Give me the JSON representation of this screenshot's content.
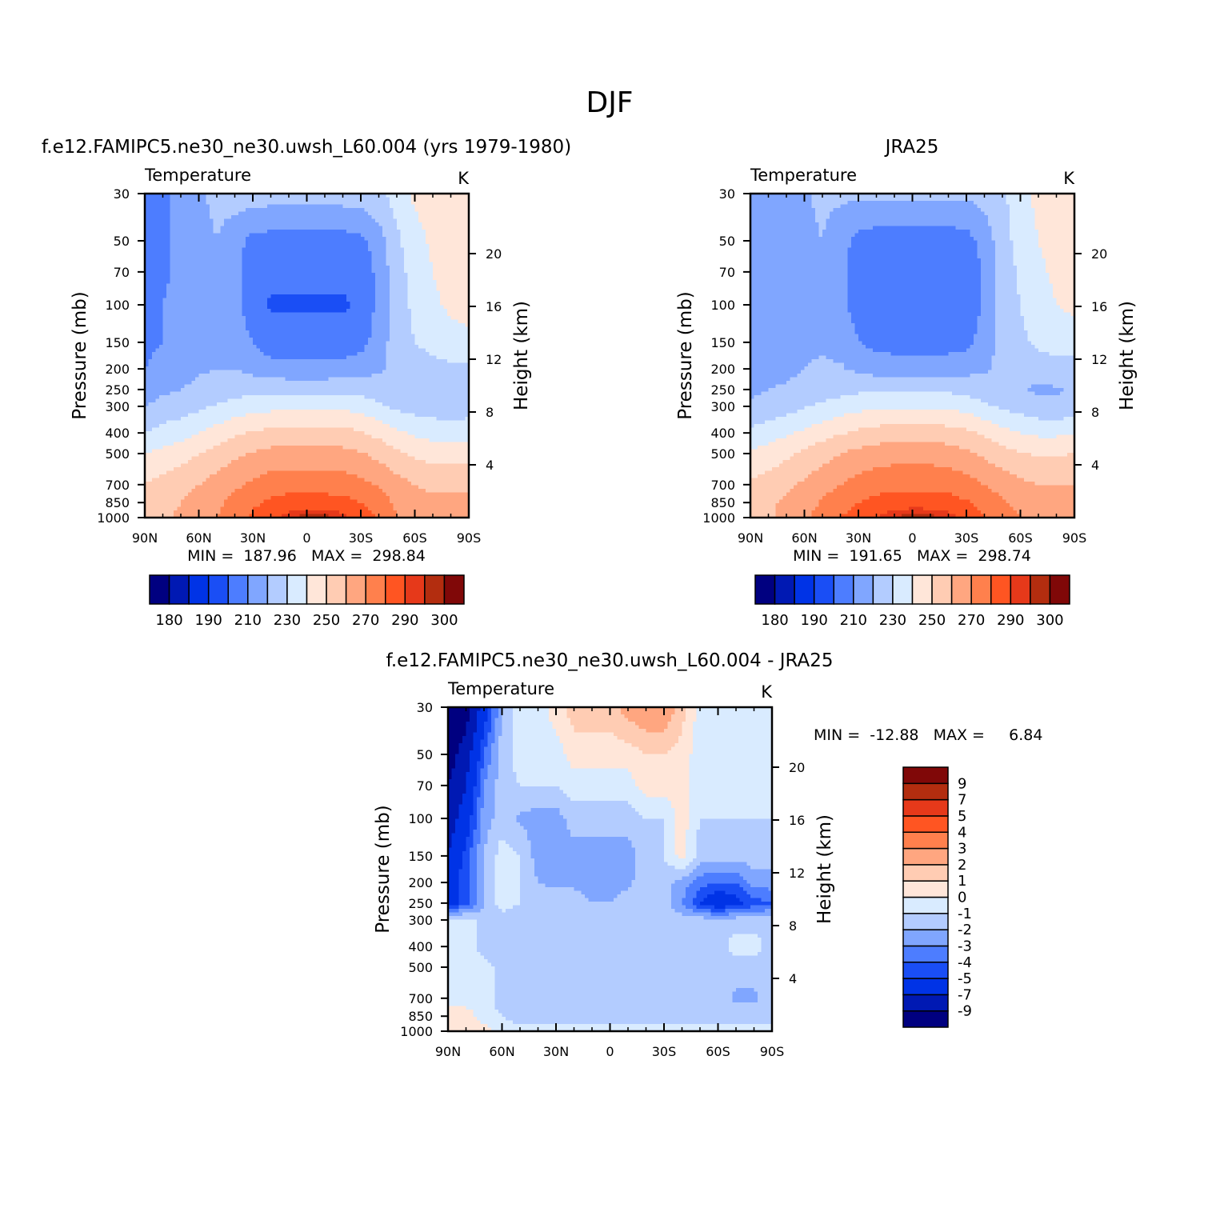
{
  "figure": {
    "title": "DJF"
  },
  "shared": {
    "pressure_ticks": [
      "30",
      "50",
      "70",
      "100",
      "150",
      "200",
      "250",
      "300",
      "400",
      "500",
      "700",
      "850",
      "1000"
    ],
    "pressure_values": [
      30,
      50,
      70,
      100,
      150,
      200,
      250,
      300,
      400,
      500,
      700,
      850,
      1000
    ],
    "height_ticks": [
      "4",
      "8",
      "12",
      "16",
      "20"
    ],
    "height_values": [
      4,
      8,
      12,
      16,
      20
    ],
    "lat_ticks": [
      "90N",
      "60N",
      "30N",
      "0",
      "30S",
      "60S",
      "90S"
    ],
    "lat_values": [
      90,
      60,
      30,
      0,
      -30,
      -60,
      -90
    ],
    "ylabel_left": "Pressure (mb)",
    "ylabel_right": "Height (km)",
    "field_label": "Temperature",
    "units_label": "K"
  },
  "colors": {
    "abs_fill": [
      "#000080",
      "#0019b3",
      "#0033e6",
      "#1a4ef5",
      "#4d7dff",
      "#80a6ff",
      "#b3ccff",
      "#d9ebff",
      "#ffe6d9",
      "#ffccb3",
      "#ffa680",
      "#ff804d",
      "#ff5522",
      "#e6391a",
      "#b32d0f",
      "#800808"
    ],
    "diff_fill": [
      "#000080",
      "#0019b3",
      "#0033e6",
      "#1a4ef5",
      "#4d7dff",
      "#80a6ff",
      "#b3ccff",
      "#d9ebff",
      "#ffe6d9",
      "#ffccb3",
      "#ffa680",
      "#ff804d",
      "#ff5522",
      "#e6391a",
      "#b32d0f",
      "#800808"
    ]
  },
  "chart_data": [
    {
      "type": "heatmap",
      "title": "f.e12.FAMIPC5.ne30_ne30.uwsh_L60.004 (yrs 1979-1980)",
      "subtitle_left": "Temperature",
      "subtitle_right": "K",
      "x_axis": "latitude",
      "xlim": [
        90,
        -90
      ],
      "ylabel": "Pressure (mb)",
      "ylim": [
        1000,
        30
      ],
      "y_scale": "log",
      "right_axis_label": "Height (km)",
      "stats_text": "MIN =  187.96   MAX =  298.84",
      "min": 187.96,
      "max": 298.84,
      "colorbar": {
        "orientation": "horizontal",
        "levels": [
          180,
          185,
          190,
          200,
          210,
          220,
          230,
          240,
          250,
          260,
          270,
          280,
          290,
          295,
          300
        ],
        "labels": [
          "180",
          "190",
          "210",
          "230",
          "250",
          "270",
          "290",
          "300"
        ]
      },
      "field": {
        "lat": [
          90,
          80,
          70,
          60,
          50,
          40,
          30,
          20,
          10,
          0,
          -10,
          -20,
          -30,
          -40,
          -50,
          -60,
          -70,
          -80,
          -90
        ],
        "p": [
          30,
          50,
          70,
          100,
          150,
          200,
          250,
          300,
          400,
          500,
          700,
          850,
          1000
        ],
        "T": [
          [
            203,
            208,
            214,
            218,
            223,
            225,
            225,
            225,
            225,
            225,
            225,
            225,
            226,
            228,
            234,
            242,
            246,
            248,
            248
          ],
          [
            206,
            208,
            212,
            216,
            220,
            214,
            207,
            206,
            206,
            206,
            206,
            206,
            207,
            215,
            228,
            236,
            242,
            246,
            246
          ],
          [
            206,
            208,
            212,
            216,
            218,
            213,
            204,
            202,
            202,
            202,
            202,
            202,
            203,
            213,
            226,
            234,
            240,
            244,
            245
          ],
          [
            206,
            210,
            214,
            218,
            218,
            214,
            203,
            199,
            199,
            199,
            199,
            199,
            201,
            213,
            226,
            232,
            238,
            242,
            244
          ],
          [
            207,
            210,
            214,
            218,
            219,
            217,
            210,
            204,
            204,
            204,
            204,
            204,
            206,
            215,
            225,
            230,
            234,
            236,
            237
          ],
          [
            210,
            215,
            216,
            219,
            220,
            220,
            217,
            214,
            213,
            213,
            213,
            214,
            216,
            219,
            222,
            224,
            226,
            228,
            228
          ],
          [
            212,
            218,
            220,
            222,
            223,
            225,
            227,
            227,
            227,
            227,
            227,
            227,
            226,
            224,
            222,
            222,
            222,
            223,
            224
          ],
          [
            220,
            224,
            225,
            228,
            231,
            234,
            236,
            237,
            238,
            238,
            238,
            238,
            236,
            232,
            228,
            226,
            225,
            225,
            225
          ],
          [
            230,
            233,
            236,
            240,
            244,
            248,
            251,
            253,
            254,
            254,
            254,
            253,
            251,
            247,
            242,
            238,
            236,
            235,
            236
          ],
          [
            240,
            243,
            246,
            250,
            254,
            258,
            261,
            263,
            264,
            264,
            264,
            263,
            261,
            257,
            252,
            248,
            246,
            246,
            247
          ],
          [
            251,
            253,
            256,
            260,
            264,
            268,
            272,
            275,
            276,
            276,
            276,
            275,
            273,
            269,
            264,
            260,
            258,
            258,
            258
          ],
          [
            256,
            258,
            260,
            264,
            268,
            273,
            278,
            282,
            284,
            284,
            284,
            283,
            280,
            275,
            268,
            264,
            262,
            262,
            262
          ],
          [
            258,
            259,
            261,
            266,
            270,
            276,
            282,
            288,
            293,
            298,
            297,
            293,
            286,
            280,
            270,
            266,
            264,
            264,
            263
          ]
        ]
      }
    },
    {
      "type": "heatmap",
      "title": "JRA25",
      "subtitle_left": "Temperature",
      "subtitle_right": "K",
      "x_axis": "latitude",
      "xlim": [
        90,
        -90
      ],
      "ylabel": "Pressure (mb)",
      "ylim": [
        1000,
        30
      ],
      "y_scale": "log",
      "right_axis_label": "Height (km)",
      "stats_text": "MIN =  191.65   MAX =  298.74",
      "min": 191.65,
      "max": 298.74,
      "colorbar": {
        "orientation": "horizontal",
        "levels": [
          180,
          185,
          190,
          200,
          210,
          220,
          230,
          240,
          250,
          260,
          270,
          280,
          290,
          295,
          300
        ],
        "labels": [
          "180",
          "190",
          "210",
          "230",
          "250",
          "270",
          "290",
          "300"
        ]
      },
      "field": {
        "lat": [
          90,
          80,
          70,
          60,
          50,
          40,
          30,
          20,
          10,
          0,
          -10,
          -20,
          -30,
          -40,
          -50,
          -60,
          -70,
          -80,
          -90
        ],
        "p": [
          30,
          50,
          70,
          100,
          150,
          200,
          250,
          300,
          400,
          500,
          700,
          850,
          1000
        ],
        "T": [
          [
            211,
            212,
            216,
            219,
            222,
            222,
            222,
            222,
            222,
            222,
            222,
            222,
            222,
            224,
            228,
            236,
            243,
            246,
            246
          ],
          [
            213,
            213,
            215,
            218,
            220,
            214,
            207,
            205,
            205,
            205,
            205,
            205,
            206,
            214,
            226,
            234,
            240,
            244,
            244
          ],
          [
            213,
            213,
            215,
            218,
            218,
            213,
            204,
            201,
            201,
            201,
            201,
            201,
            202,
            212,
            224,
            232,
            238,
            242,
            243
          ],
          [
            212,
            213,
            216,
            219,
            218,
            214,
            204,
            200,
            200,
            200,
            200,
            200,
            202,
            212,
            224,
            230,
            236,
            240,
            242
          ],
          [
            212,
            214,
            216,
            219,
            219,
            217,
            211,
            206,
            206,
            206,
            206,
            206,
            207,
            215,
            224,
            228,
            232,
            234,
            235
          ],
          [
            215,
            217,
            218,
            220,
            221,
            221,
            218,
            216,
            215,
            215,
            215,
            215,
            217,
            219,
            222,
            223,
            225,
            226,
            226
          ],
          [
            218,
            220,
            221,
            223,
            224,
            226,
            228,
            228,
            228,
            228,
            228,
            228,
            226,
            224,
            222,
            221,
            218,
            219,
            222
          ],
          [
            222,
            224,
            226,
            229,
            232,
            235,
            237,
            238,
            239,
            239,
            239,
            238,
            236,
            232,
            228,
            226,
            223,
            222,
            224
          ],
          [
            232,
            235,
            238,
            242,
            246,
            249,
            252,
            254,
            255,
            255,
            255,
            254,
            252,
            248,
            243,
            240,
            238,
            238,
            239
          ],
          [
            242,
            245,
            248,
            252,
            256,
            260,
            263,
            265,
            266,
            266,
            266,
            265,
            262,
            258,
            254,
            251,
            249,
            249,
            250
          ],
          [
            252,
            254,
            257,
            262,
            266,
            270,
            274,
            276,
            277,
            277,
            277,
            276,
            274,
            270,
            266,
            262,
            260,
            260,
            260
          ],
          [
            256,
            258,
            262,
            266,
            271,
            276,
            280,
            283,
            285,
            285,
            285,
            284,
            281,
            276,
            271,
            267,
            265,
            264,
            264
          ],
          [
            256,
            258,
            263,
            268,
            274,
            280,
            285,
            290,
            295,
            298,
            297,
            293,
            287,
            281,
            274,
            270,
            268,
            266,
            265
          ]
        ]
      }
    },
    {
      "type": "heatmap",
      "title": "f.e12.FAMIPC5.ne30_ne30.uwsh_L60.004 - JRA25",
      "subtitle_left": "Temperature",
      "subtitle_right": "K",
      "x_axis": "latitude",
      "xlim": [
        90,
        -90
      ],
      "ylabel": "Pressure (mb)",
      "ylim": [
        1000,
        30
      ],
      "y_scale": "log",
      "right_axis_label": "Height (km)",
      "stats_text": "MIN =  -12.88   MAX =     6.84",
      "min": -12.88,
      "max": 6.84,
      "colorbar": {
        "orientation": "vertical",
        "levels": [
          -9,
          -7,
          -5,
          -4,
          -3,
          -2,
          -1,
          0,
          1,
          2,
          3,
          4,
          5,
          7,
          9
        ],
        "labels": [
          "-9",
          "-7",
          "-5",
          "-4",
          "-3",
          "-2",
          "-1",
          "0",
          "1",
          "2",
          "3",
          "4",
          "5",
          "7",
          "9"
        ]
      },
      "field": {
        "lat": [
          90,
          80,
          70,
          60,
          50,
          40,
          30,
          20,
          10,
          0,
          -10,
          -20,
          -30,
          -40,
          -50,
          -60,
          -70,
          -80,
          -90
        ],
        "p": [
          30,
          50,
          70,
          100,
          150,
          200,
          250,
          300,
          400,
          500,
          700,
          850,
          1000
        ],
        "T": [
          [
            -11,
            -10,
            -6,
            -2,
            -0.5,
            -0.5,
            0.5,
            1.5,
            1.5,
            1.5,
            2.5,
            3.0,
            3.0,
            1.5,
            -0.5,
            -0.5,
            -0.5,
            -1.0,
            -0.5
          ],
          [
            -10,
            -8,
            -4,
            -1.5,
            -0.5,
            -0.5,
            -0.5,
            0.5,
            0.5,
            0.5,
            0.5,
            1.0,
            1.0,
            0.5,
            -0.5,
            -0.5,
            -0.5,
            -1.0,
            -0.5
          ],
          [
            -9,
            -7,
            -3,
            -1.5,
            -1.0,
            -1.0,
            -1.0,
            -0.5,
            -0.5,
            -0.5,
            -0.5,
            0.5,
            0.5,
            0.5,
            -1.0,
            -1.0,
            -1.0,
            -1.0,
            -1.0
          ],
          [
            -8,
            -6,
            -2.5,
            -1.5,
            -2.2,
            -2.5,
            -2.5,
            -1.5,
            -1.5,
            -1.5,
            -1.5,
            -1.0,
            -1.0,
            0.5,
            -1.0,
            -1.0,
            -1.0,
            -1.0,
            -1.0
          ],
          [
            -7,
            -4.5,
            -2,
            -0.5,
            -1.0,
            -2.5,
            -2.5,
            -2.5,
            -2.5,
            -2.5,
            -2.5,
            -1.5,
            -1.0,
            0.5,
            -1.5,
            -1.5,
            -1.5,
            -1.5,
            -1.5
          ],
          [
            -5.5,
            -4.5,
            -2,
            -0.5,
            -1.0,
            -2.0,
            -2.2,
            -2.2,
            -2.5,
            -2.5,
            -2.2,
            -1.5,
            -1.5,
            -2.5,
            -3.5,
            -4.0,
            -4.0,
            -2.5,
            -2.5
          ],
          [
            -6,
            -4.5,
            -2,
            -0.5,
            -1.0,
            -1.5,
            -1.5,
            -1.5,
            -2.0,
            -2.0,
            -1.5,
            -1.5,
            -1.5,
            -3.0,
            -5.0,
            -6.5,
            -5.5,
            -4.5,
            -4.0
          ],
          [
            -0.5,
            -0.5,
            -1.5,
            -1.5,
            -1.5,
            -1.5,
            -1.5,
            -1.5,
            -2.0,
            -2.0,
            -1.5,
            -1.5,
            -1.5,
            -1.5,
            -1.5,
            -1.5,
            -1.5,
            -1.5,
            -1.5
          ],
          [
            -0.5,
            -0.5,
            -1.5,
            -1.5,
            -1.5,
            -1.5,
            -1.5,
            -1.5,
            -1.5,
            -1.5,
            -1.5,
            -1.5,
            -1.5,
            -1.5,
            -1.5,
            -1.5,
            -0.5,
            -0.5,
            -1.5
          ],
          [
            -0.5,
            -0.5,
            -0.5,
            -1.5,
            -1.5,
            -1.5,
            -1.5,
            -1.5,
            -1.5,
            -1.5,
            -1.5,
            -1.5,
            -1.5,
            -1.5,
            -1.5,
            -1.5,
            -1.5,
            -1.5,
            -1.5
          ],
          [
            -0.5,
            -0.5,
            -0.5,
            -1.5,
            -1.5,
            -1.5,
            -1.5,
            -1.5,
            -1.5,
            -1.5,
            -1.5,
            -1.5,
            -1.5,
            -1.5,
            -1.5,
            -1.5,
            -2.2,
            -2.2,
            -1.5
          ],
          [
            0.5,
            0.5,
            -0.5,
            -1.0,
            -1.5,
            -1.5,
            -1.5,
            -1.5,
            -1.5,
            -1.5,
            -1.5,
            -1.5,
            -1.5,
            -1.5,
            -1.5,
            -1.5,
            -1.5,
            -1.5,
            -1.5
          ],
          [
            0.5,
            0.5,
            0.5,
            -0.5,
            -0.5,
            -0.5,
            -0.5,
            -0.5,
            -0.5,
            -0.5,
            -0.5,
            -0.5,
            -0.5,
            -0.5,
            -0.5,
            -0.5,
            -0.5,
            -0.5,
            -0.5
          ]
        ]
      }
    }
  ]
}
